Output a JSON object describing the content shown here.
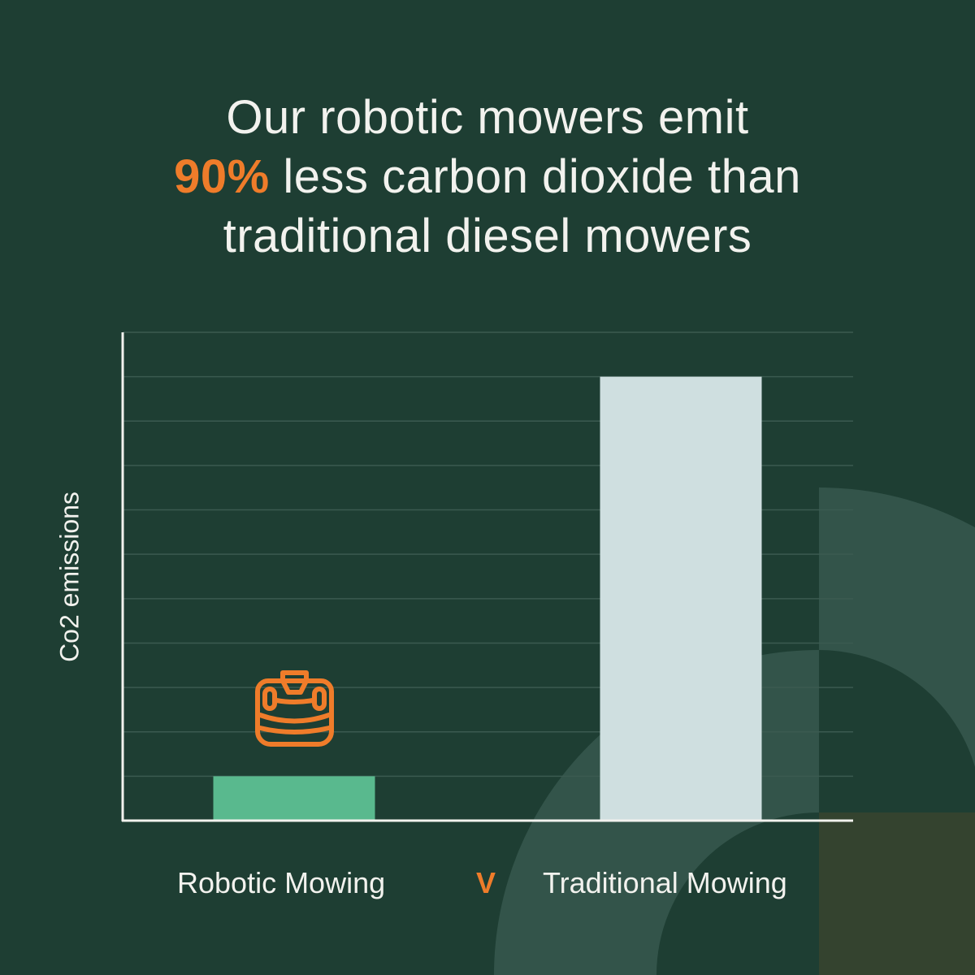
{
  "headline": {
    "line1": "Our robotic mowers emit",
    "highlight": "90%",
    "line2_rest": " less carbon dioxide than",
    "line3": "traditional diesel mowers"
  },
  "colors": {
    "background": "#1e3e33",
    "accent": "#ef7c2a",
    "robotic_bar": "#59b98e",
    "traditional_bar": "#cfdfe0",
    "gridline": "#3b5a50",
    "decoration": "#33544a",
    "decoration_block": "#34432f"
  },
  "icon": "robotic-mower-icon",
  "separator": "V",
  "chart_data": {
    "type": "bar",
    "categories": [
      "Robotic Mowing",
      "Traditional Mowing"
    ],
    "values": [
      1,
      10
    ],
    "title": "",
    "xlabel": "",
    "ylabel": "Co2 emissions",
    "ylim": [
      0,
      11
    ],
    "grid": true,
    "tick_labels_shown": false
  }
}
